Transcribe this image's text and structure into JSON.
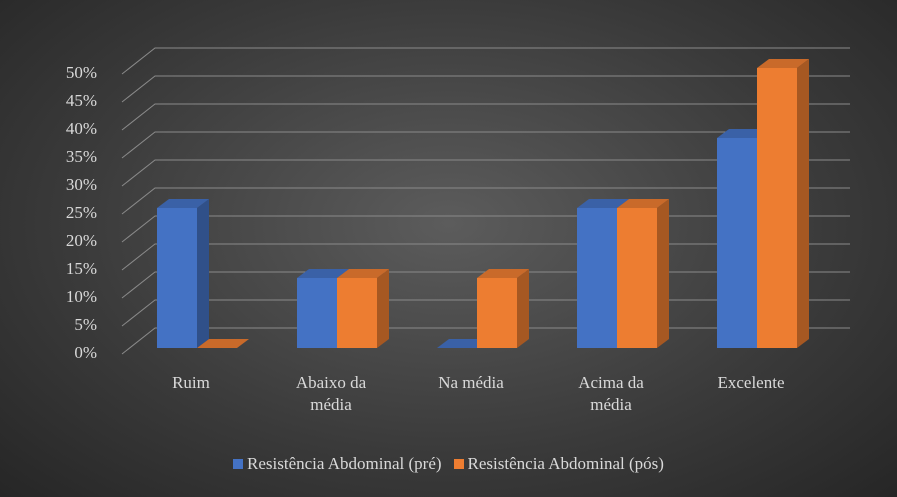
{
  "chart_data": {
    "type": "bar3d",
    "categories": [
      "Ruim",
      "Abaixo da média",
      "Na média",
      "Acima da média",
      "Excelente"
    ],
    "series": [
      {
        "name": "Resistência Abdominal (pré)",
        "color": "#4472c4",
        "values": [
          25,
          12.5,
          0,
          25,
          37.5
        ]
      },
      {
        "name": "Resistência Abdominal (pós)",
        "color": "#ed7d31",
        "values": [
          0,
          12.5,
          12.5,
          25,
          50
        ]
      }
    ],
    "ylim": [
      0,
      50
    ],
    "yticks": [
      {
        "value": 0,
        "label": "0%"
      },
      {
        "value": 5,
        "label": "5%"
      },
      {
        "value": 10,
        "label": "10%"
      },
      {
        "value": 15,
        "label": "15%"
      },
      {
        "value": 20,
        "label": "20%"
      },
      {
        "value": 25,
        "label": "25%"
      },
      {
        "value": 30,
        "label": "30%"
      },
      {
        "value": 35,
        "label": "35%"
      },
      {
        "value": 40,
        "label": "40%"
      },
      {
        "value": 45,
        "label": "45%"
      },
      {
        "value": 50,
        "label": "50%"
      }
    ],
    "grid": true
  }
}
